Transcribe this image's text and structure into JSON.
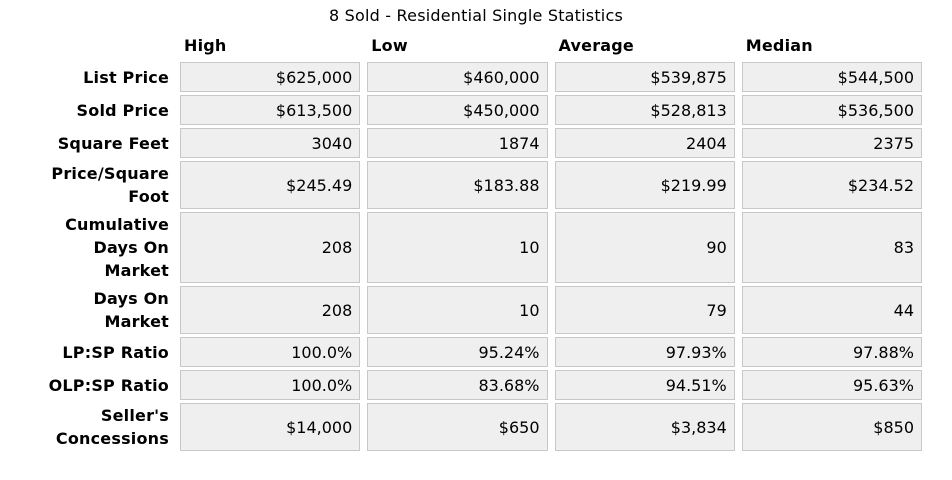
{
  "title": "8 Sold - Residential Single Statistics",
  "columns": [
    "High",
    "Low",
    "Average",
    "Median"
  ],
  "rows": [
    {
      "label": "List Price",
      "values": [
        "$625,000",
        "$460,000",
        "$539,875",
        "$544,500"
      ]
    },
    {
      "label": "Sold Price",
      "values": [
        "$613,500",
        "$450,000",
        "$528,813",
        "$536,500"
      ]
    },
    {
      "label": "Square Feet",
      "values": [
        "3040",
        "1874",
        "2404",
        "2375"
      ]
    },
    {
      "label": "Price/Square\nFoot",
      "values": [
        "$245.49",
        "$183.88",
        "$219.99",
        "$234.52"
      ]
    },
    {
      "label": "Cumulative\nDays On\nMarket",
      "values": [
        "208",
        "10",
        "90",
        "83"
      ]
    },
    {
      "label": "Days On\nMarket",
      "values": [
        "208",
        "10",
        "79",
        "44"
      ]
    },
    {
      "label": "LP:SP Ratio",
      "values": [
        "100.0%",
        "95.24%",
        "97.93%",
        "97.88%"
      ]
    },
    {
      "label": "OLP:SP Ratio",
      "values": [
        "100.0%",
        "83.68%",
        "94.51%",
        "95.63%"
      ]
    },
    {
      "label": "Seller's\nConcessions",
      "values": [
        "$14,000",
        "$650",
        "$3,834",
        "$850"
      ]
    }
  ],
  "colors": {
    "page_background": "#ffffff",
    "cell_background": "#efefef",
    "cell_border": "#c8c8c8",
    "text": "#000000"
  },
  "chart_data": {
    "type": "table",
    "title": "8 Sold - Residential Single Statistics",
    "columns": [
      "High",
      "Low",
      "Average",
      "Median"
    ],
    "row_labels": [
      "List Price",
      "Sold Price",
      "Square Feet",
      "Price/Square Foot",
      "Cumulative Days On Market",
      "Days On Market",
      "LP:SP Ratio",
      "OLP:SP Ratio",
      "Seller's Concessions"
    ],
    "values": [
      [
        625000,
        460000,
        539875,
        544500
      ],
      [
        613500,
        450000,
        528813,
        536500
      ],
      [
        3040,
        1874,
        2404,
        2375
      ],
      [
        245.49,
        183.88,
        219.99,
        234.52
      ],
      [
        208,
        10,
        90,
        83
      ],
      [
        208,
        10,
        79,
        44
      ],
      [
        100.0,
        95.24,
        97.93,
        97.88
      ],
      [
        100.0,
        83.68,
        94.51,
        95.63
      ],
      [
        14000,
        650,
        3834,
        850
      ]
    ]
  }
}
